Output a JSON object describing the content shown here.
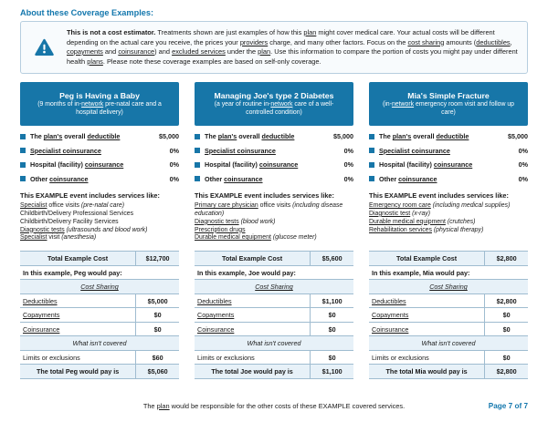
{
  "page": {
    "heading": "About these Coverage Examples:",
    "page_number": "Page 7 of 7",
    "footer_segments": [
      {
        "t": "The "
      },
      {
        "t": "plan",
        "u": true
      },
      {
        "t": " would be responsible for the other costs of these EXAMPLE covered services."
      }
    ]
  },
  "colors": {
    "accent_blue": "#1776A8",
    "heading_blue": "#1377AD",
    "row_highlight": "#E7F1F8",
    "table_border": "#9FBCD0",
    "notice_border": "#B7CEDF",
    "notice_background": "#F8FBFD"
  },
  "notice": {
    "icon": "warning-triangle-icon",
    "segments": [
      {
        "t": "This is not a cost estimator. ",
        "b": true
      },
      {
        "t": "Treatments shown are just examples of how this "
      },
      {
        "t": "plan",
        "u": true
      },
      {
        "t": " might cover medical care. Your actual costs will be different depending on the actual care you receive, the prices your "
      },
      {
        "t": "providers",
        "u": true
      },
      {
        "t": " charge, and many other factors. Focus on the "
      },
      {
        "t": "cost sharing",
        "u": true
      },
      {
        "t": " amounts ("
      },
      {
        "t": "deductibles",
        "u": true
      },
      {
        "t": ", "
      },
      {
        "t": "copayments",
        "u": true
      },
      {
        "t": " and "
      },
      {
        "t": "coinsurance",
        "u": true
      },
      {
        "t": ") and "
      },
      {
        "t": "excluded services",
        "u": true
      },
      {
        "t": " under the "
      },
      {
        "t": "plan",
        "u": true
      },
      {
        "t": ". Use this information to compare the portion of costs you might pay under different health "
      },
      {
        "t": "plans",
        "u": true
      },
      {
        "t": ". Please note these coverage examples are based on self-only coverage."
      }
    ]
  },
  "examples": [
    {
      "title": "Peg is Having a Baby",
      "subtitle_segments": [
        {
          "t": "(9 months of in-"
        },
        {
          "t": "network",
          "u": true
        },
        {
          "t": " pre-natal care and a hospital delivery)"
        }
      ],
      "metrics": [
        {
          "label_segments": [
            {
              "t": "The "
            },
            {
              "t": "plan's",
              "u": true
            },
            {
              "t": " overall "
            },
            {
              "t": "deductible",
              "u": true
            }
          ],
          "value": "$5,000"
        },
        {
          "label_segments": [
            {
              "t": "Specialist coinsurance",
              "u": true
            }
          ],
          "value": "0%"
        },
        {
          "label_segments": [
            {
              "t": "Hospital (facility) "
            },
            {
              "t": "coinsurance",
              "u": true
            }
          ],
          "value": "0%"
        },
        {
          "label_segments": [
            {
              "t": "Other "
            },
            {
              "t": "coinsurance",
              "u": true
            }
          ],
          "value": "0%"
        }
      ],
      "services_heading": "This EXAMPLE event includes services like:",
      "services": [
        [
          {
            "t": "Specialist",
            "u": true
          },
          {
            "t": " office visits  "
          },
          {
            "t": "(pre-natal care)",
            "i": true
          }
        ],
        [
          {
            "t": "Childbirth/Delivery Professional Services"
          }
        ],
        [
          {
            "t": "Childbirth/Delivery Facility Services"
          }
        ],
        [
          {
            "t": "Diagnostic tests",
            "u": true
          },
          {
            "t": " "
          },
          {
            "t": "(ultrasounds and blood work)",
            "i": true
          }
        ],
        [
          {
            "t": "Specialist",
            "u": true
          },
          {
            "t": " visit "
          },
          {
            "t": "(anesthesia)",
            "i": true
          }
        ]
      ],
      "table": {
        "total_cost_label": "Total Example Cost",
        "total_cost_value": "$12,700",
        "would_pay_label": "In this example, Peg would pay:",
        "cost_sharing_label": "Cost Sharing",
        "rows": [
          {
            "label": "Deductibles",
            "value": "$5,000"
          },
          {
            "label": "Copayments",
            "value": "$0"
          },
          {
            "label": "Coinsurance",
            "value": "$0"
          }
        ],
        "not_covered_label": "What isn't covered",
        "limits_label": "Limits or exclusions",
        "limits_value": "$60",
        "total_label": "The total Peg would pay is",
        "total_value": "$5,060"
      }
    },
    {
      "title": "Managing Joe's type 2 Diabetes",
      "subtitle_segments": [
        {
          "t": "(a year of routine in-"
        },
        {
          "t": "network",
          "u": true
        },
        {
          "t": " care of a well-controlled condition)"
        }
      ],
      "metrics": [
        {
          "label_segments": [
            {
              "t": "The "
            },
            {
              "t": "plan's",
              "u": true
            },
            {
              "t": " overall "
            },
            {
              "t": "deductible",
              "u": true
            }
          ],
          "value": "$5,000"
        },
        {
          "label_segments": [
            {
              "t": "Specialist coinsurance",
              "u": true
            }
          ],
          "value": "0%"
        },
        {
          "label_segments": [
            {
              "t": "Hospital (facility) "
            },
            {
              "t": "coinsurance",
              "u": true
            }
          ],
          "value": "0%"
        },
        {
          "label_segments": [
            {
              "t": "Other "
            },
            {
              "t": "coinsurance",
              "u": true
            }
          ],
          "value": "0%"
        }
      ],
      "services_heading": "This EXAMPLE event includes services like:",
      "services": [
        [
          {
            "t": "Primary care physician",
            "u": true
          },
          {
            "t": " office visits  "
          },
          {
            "t": "(including disease education)",
            "i": true
          }
        ],
        [
          {
            "t": "Diagnostic tests",
            "u": true
          },
          {
            "t": " "
          },
          {
            "t": "(blood work)",
            "i": true
          }
        ],
        [
          {
            "t": "Prescription drugs",
            "u": true
          }
        ],
        [
          {
            "t": "Durable medical equipment",
            "u": true
          },
          {
            "t": " "
          },
          {
            "t": "(glucose meter)",
            "i": true
          }
        ]
      ],
      "table": {
        "total_cost_label": "Total Example Cost",
        "total_cost_value": "$5,600",
        "would_pay_label": "In this example, Joe would pay:",
        "cost_sharing_label": "Cost Sharing",
        "rows": [
          {
            "label": "Deductibles",
            "value": "$1,100"
          },
          {
            "label": "Copayments",
            "value": "$0"
          },
          {
            "label": "Coinsurance",
            "value": "$0"
          }
        ],
        "not_covered_label": "What isn't covered",
        "limits_label": "Limits or exclusions",
        "limits_value": "$0",
        "total_label": "The total Joe would pay is",
        "total_value": "$1,100"
      }
    },
    {
      "title": "Mia's Simple Fracture",
      "subtitle_segments": [
        {
          "t": "(in-"
        },
        {
          "t": "network",
          "u": true
        },
        {
          "t": " emergency room visit and follow up care)"
        }
      ],
      "metrics": [
        {
          "label_segments": [
            {
              "t": "The "
            },
            {
              "t": "plan's",
              "u": true
            },
            {
              "t": " overall "
            },
            {
              "t": "deductible",
              "u": true
            }
          ],
          "value": "$5,000"
        },
        {
          "label_segments": [
            {
              "t": "Specialist coinsurance",
              "u": true
            }
          ],
          "value": "0%"
        },
        {
          "label_segments": [
            {
              "t": "Hospital (facility) "
            },
            {
              "t": "coinsurance",
              "u": true
            }
          ],
          "value": "0%"
        },
        {
          "label_segments": [
            {
              "t": "Other "
            },
            {
              "t": "coinsurance",
              "u": true
            }
          ],
          "value": "0%"
        }
      ],
      "services_heading": "This EXAMPLE event includes services like:",
      "services": [
        [
          {
            "t": "Emergency room care",
            "u": true
          },
          {
            "t": " "
          },
          {
            "t": "(including medical supplies)",
            "i": true
          }
        ],
        [
          {
            "t": "Diagnostic test",
            "u": true
          },
          {
            "t": " "
          },
          {
            "t": "(x-ray)",
            "i": true
          }
        ],
        [
          {
            "t": "Durable medical equipment",
            "u": true
          },
          {
            "t": " "
          },
          {
            "t": "(crutches)",
            "i": true
          }
        ],
        [
          {
            "t": "Rehabilitation services",
            "u": true
          },
          {
            "t": " "
          },
          {
            "t": "(physical therapy)",
            "i": true
          }
        ]
      ],
      "table": {
        "total_cost_label": "Total Example Cost",
        "total_cost_value": "$2,800",
        "would_pay_label": "In this example, Mia would pay:",
        "cost_sharing_label": "Cost Sharing",
        "rows": [
          {
            "label": "Deductibles",
            "value": "$2,800"
          },
          {
            "label": "Copayments",
            "value": "$0"
          },
          {
            "label": "Coinsurance",
            "value": "$0"
          }
        ],
        "not_covered_label": "What isn't covered",
        "limits_label": "Limits or exclusions",
        "limits_value": "$0",
        "total_label": "The total Mia would pay is",
        "total_value": "$2,800"
      }
    }
  ]
}
